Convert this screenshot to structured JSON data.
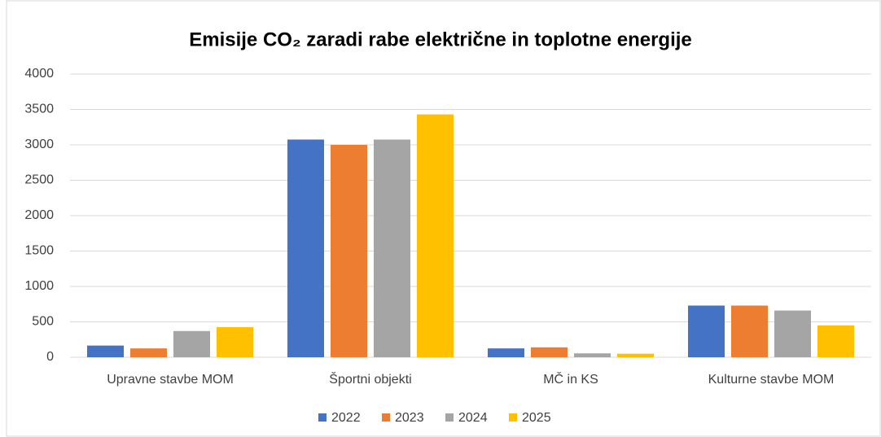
{
  "chart_data": {
    "type": "bar",
    "title": "Emisije CO₂ zaradi rabe električne in toplotne energije",
    "categories": [
      "Upravne stavbe MOM",
      "Športni objekti",
      "MČ in KS",
      "Kulturne stavbe MOM"
    ],
    "series": [
      {
        "name": "2022",
        "color": "#4472c4",
        "values": [
          165,
          3075,
          125,
          730
        ]
      },
      {
        "name": "2023",
        "color": "#ed7d31",
        "values": [
          125,
          3000,
          140,
          730
        ]
      },
      {
        "name": "2024",
        "color": "#a5a5a5",
        "values": [
          370,
          3075,
          55,
          660
        ]
      },
      {
        "name": "2025",
        "color": "#ffc000",
        "values": [
          425,
          3430,
          50,
          450
        ]
      }
    ],
    "ylim": [
      0,
      4000
    ],
    "yticks": [
      0,
      500,
      1000,
      1500,
      2000,
      2500,
      3000,
      3500,
      4000
    ],
    "grid": true,
    "legend": "bottom"
  }
}
